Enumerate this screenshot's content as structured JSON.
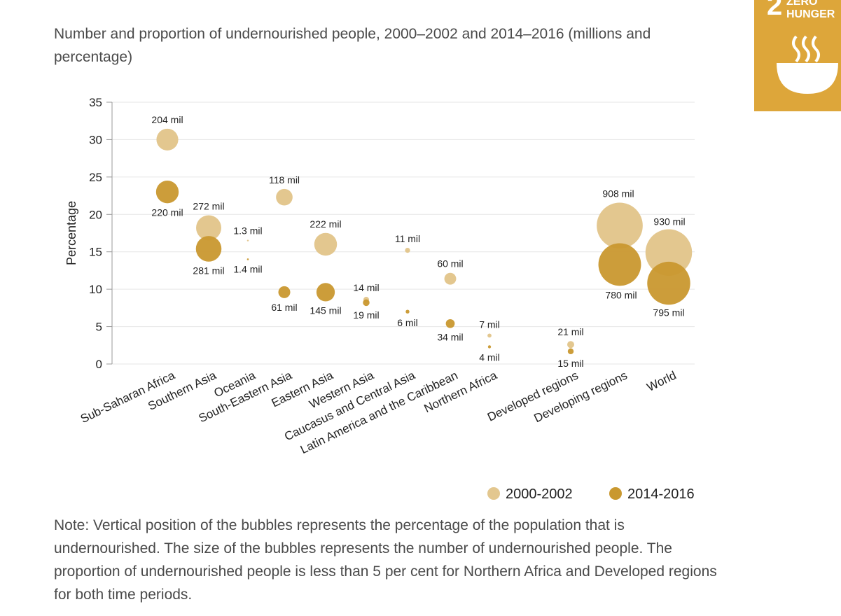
{
  "page": {
    "title": "Number and proportion of undernourished people, 2000–2002 and 2014–2016 (millions and percentage)",
    "note": "Note: Vertical position of the bubbles represents the percentage of the population that is undernourished. The size of the bubbles represents the number of undernourished people. The proportion of undernourished people is less than 5 per cent for Northern Africa and Developed regions for both time periods."
  },
  "badge": {
    "number": "2",
    "line1": "ZERO",
    "line2": "HUNGER",
    "icon": "bowl-icon"
  },
  "colors": {
    "series_2000": "#e3c78f",
    "series_2014": "#c9982f",
    "grid": "#e6e6e6",
    "badge": "#dda63a"
  },
  "chart_data": {
    "type": "scatter",
    "subtype": "bubble",
    "ylabel": "Percentage",
    "ylim": [
      0,
      35
    ],
    "yticks": [
      0,
      5,
      10,
      15,
      20,
      25,
      30,
      35
    ],
    "legend": [
      "2000-2002",
      "2014-2016"
    ],
    "legend_position": "bottom-right",
    "categories": [
      "Sub-Saharan Africa",
      "Southern Asia",
      "Oceania",
      "South-Eastern Asia",
      "Eastern Asia",
      "Western Asia",
      "Caucasus and Central Asia",
      "Latin America and the Caribbean",
      "Northern Africa",
      "Developed regions",
      "Developing regions",
      "World"
    ],
    "series": [
      {
        "name": "2000-2002",
        "percent": [
          30.0,
          18.2,
          16.5,
          22.3,
          16.0,
          8.6,
          15.2,
          11.4,
          3.8,
          2.6,
          18.5,
          14.9
        ],
        "people_millions": [
          204,
          272,
          1.3,
          118,
          222,
          14,
          11,
          60,
          7,
          21,
          908,
          930
        ],
        "labels": [
          "204 mil",
          "272 mil",
          "1.3 mil",
          "118 mil",
          "222 mil",
          "14 mil",
          "11 mil",
          "60 mil",
          "7 mil",
          "21 mil",
          "908 mil",
          "930 mil"
        ]
      },
      {
        "name": "2014-2016",
        "percent": [
          23.0,
          15.4,
          14.0,
          9.6,
          9.6,
          8.2,
          7.0,
          5.4,
          2.3,
          1.7,
          13.3,
          10.8
        ],
        "people_millions": [
          220,
          281,
          1.4,
          61,
          145,
          19,
          6,
          34,
          4,
          15,
          780,
          795
        ],
        "labels": [
          "220 mil",
          "281 mil",
          "1.4 mil",
          "61 mil",
          "145 mil",
          "19 mil",
          "6 mil",
          "34 mil",
          "4 mil",
          "15 mil",
          "780 mil",
          "795 mil"
        ]
      }
    ]
  }
}
